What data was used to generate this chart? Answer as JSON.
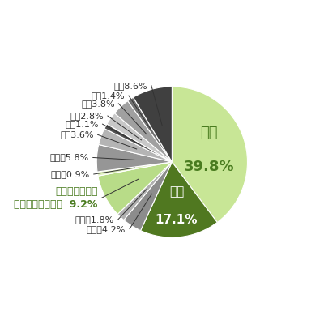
{
  "segments": [
    {
      "label": "事務",
      "label_short": "事務",
      "pct": 39.8,
      "color": "#c8e696",
      "inside": true,
      "bold": true,
      "fontsize": 13,
      "text_color": "#4a7c20"
    },
    {
      "label": "専門",
      "label_short": "専門",
      "pct": 17.1,
      "color": "#507820",
      "inside": true,
      "bold": true,
      "fontsize": 11,
      "text_color": "#ffffff"
    },
    {
      "label": "管理職4.2%",
      "label_short": "管理職",
      "pct": 4.2,
      "color": "#8c8c8c",
      "inside": false,
      "bold": false,
      "fontsize": 8,
      "text_color": "#333333"
    },
    {
      "label": "その他1.8%",
      "label_short": "その他",
      "pct": 1.8,
      "color": "#b0b0b0",
      "inside": false,
      "bold": false,
      "fontsize": 8,
      "text_color": "#333333"
    },
    {
      "label": "その他サービス\n（介護・保育等）  9.2%",
      "label_short": "その他サービス",
      "pct": 9.2,
      "color": "#b8dc88",
      "inside": false,
      "bold": true,
      "fontsize": 9,
      "text_color": "#4a7c20"
    },
    {
      "label": "運転手0.9%",
      "label_short": "運転手",
      "pct": 0.9,
      "color": "#dff0c0",
      "inside": false,
      "bold": false,
      "fontsize": 8,
      "text_color": "#333333"
    },
    {
      "label": "管理員5.8%",
      "label_short": "管理員",
      "pct": 5.8,
      "color": "#969696",
      "inside": false,
      "bold": false,
      "fontsize": 8,
      "text_color": "#333333"
    },
    {
      "label": "調理3.6%",
      "label_short": "調理",
      "pct": 3.6,
      "color": "#b4b4b4",
      "inside": false,
      "bold": false,
      "fontsize": 8,
      "text_color": "#333333"
    },
    {
      "label": "保安1.1%",
      "label_short": "保安",
      "pct": 1.1,
      "color": "#505050",
      "inside": false,
      "bold": false,
      "fontsize": 8,
      "text_color": "#333333"
    },
    {
      "label": "清掃2.8%",
      "label_short": "清掃",
      "pct": 2.8,
      "color": "#c8c8c8",
      "inside": false,
      "bold": false,
      "fontsize": 8,
      "text_color": "#333333"
    },
    {
      "label": "労務3.8%",
      "label_short": "労務",
      "pct": 3.8,
      "color": "#a0a0a0",
      "inside": false,
      "bold": false,
      "fontsize": 8,
      "text_color": "#333333"
    },
    {
      "label": "技術1.4%",
      "label_short": "技術",
      "pct": 1.4,
      "color": "#707070",
      "inside": false,
      "bold": false,
      "fontsize": 8,
      "text_color": "#333333"
    },
    {
      "label": "販売8.6%",
      "label_short": "販売",
      "pct": 8.6,
      "color": "#404040",
      "inside": false,
      "bold": false,
      "fontsize": 8,
      "text_color": "#333333"
    }
  ],
  "figsize": [
    4.0,
    4.0
  ],
  "dpi": 100,
  "bg_color": "#ffffff"
}
